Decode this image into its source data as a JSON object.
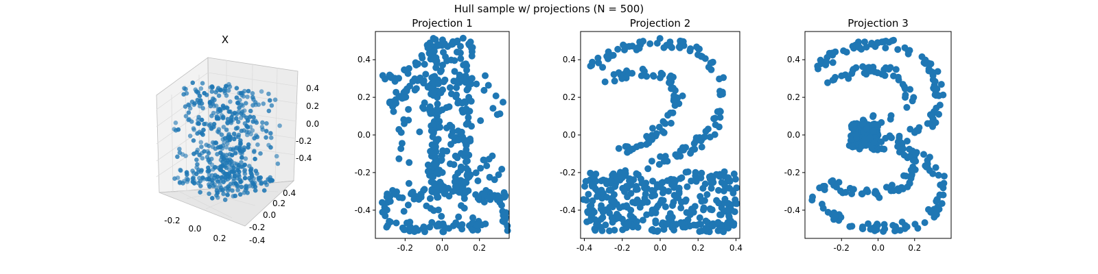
{
  "figure": {
    "suptitle": "Hull sample w/ projections (N = 500)"
  },
  "colors": {
    "point": "#1f77b4",
    "pane": "#f2f2f2",
    "grid": "#dcdcdc"
  },
  "chart_data": [
    {
      "type": "scatter3d",
      "title": "X",
      "n_points": 500,
      "x_ticks": [
        "-0.2",
        "0.0",
        "0.2"
      ],
      "y_ticks": [
        "0.4",
        "0.2",
        "0.0",
        "-0.2",
        "-0.4"
      ],
      "z_ticks": [
        "0.4",
        "0.2",
        "0.0",
        "-0.2",
        "-0.4"
      ],
      "xlim": [
        -0.35,
        0.35
      ],
      "ylim": [
        -0.5,
        0.5
      ],
      "zlim": [
        -0.5,
        0.5
      ],
      "grid": true
    },
    {
      "type": "scatter",
      "title": "Projection 1",
      "shape": "digit 1",
      "xlim": [
        -0.36,
        0.36
      ],
      "ylim": [
        -0.55,
        0.55
      ],
      "x_ticks": [
        "-0.2",
        "0.0",
        "0.2"
      ],
      "x_tick_values": [
        -0.2,
        0.0,
        0.2
      ],
      "y_ticks": [
        "0.4",
        "0.2",
        "0.0",
        "-0.2",
        "-0.4"
      ],
      "y_tick_values": [
        0.4,
        0.2,
        0.0,
        -0.2,
        -0.4
      ],
      "strokes": [
        [
          [
            -0.31,
            0.31
          ],
          [
            -0.15,
            0.34
          ],
          [
            -0.04,
            0.49
          ]
        ],
        [
          [
            -0.04,
            0.49
          ],
          [
            0.14,
            0.49
          ]
        ],
        [
          [
            -0.04,
            0.49
          ],
          [
            -0.06,
            -0.32
          ]
        ],
        [
          [
            0.14,
            0.49
          ],
          [
            0.12,
            -0.32
          ]
        ],
        [
          [
            -0.28,
            0.18
          ],
          [
            -0.06,
            0.32
          ]
        ],
        [
          [
            -0.3,
            -0.32
          ],
          [
            0.33,
            -0.32
          ]
        ],
        [
          [
            -0.3,
            -0.49
          ],
          [
            0.33,
            -0.49
          ]
        ],
        [
          [
            -0.3,
            -0.32
          ],
          [
            -0.3,
            -0.49
          ]
        ],
        [
          [
            0.33,
            -0.32
          ],
          [
            0.33,
            -0.49
          ]
        ]
      ],
      "fills": [
        [
          [
            -0.29,
            0.33
          ],
          [
            0.33,
            -0.49
          ]
        ],
        [
          [
            -0.05,
            0.48
          ],
          [
            0.13,
            -0.31
          ]
        ]
      ]
    },
    {
      "type": "scatter",
      "title": "Projection 2",
      "shape": "digit 2",
      "xlim": [
        -0.42,
        0.42
      ],
      "ylim": [
        -0.55,
        0.55
      ],
      "x_ticks": [
        "-0.4",
        "-0.2",
        "0.0",
        "0.2",
        "0.4"
      ],
      "x_tick_values": [
        -0.4,
        -0.2,
        0.0,
        0.2,
        0.4
      ],
      "y_ticks": [
        "0.4",
        "0.2",
        "0.0",
        "-0.2",
        "-0.4"
      ],
      "y_tick_values": [
        0.4,
        0.2,
        0.0,
        -0.2,
        -0.4
      ],
      "strokes": [
        [
          [
            -0.38,
            0.34
          ],
          [
            -0.26,
            0.44
          ],
          [
            -0.05,
            0.49
          ],
          [
            0.14,
            0.48
          ],
          [
            0.28,
            0.38
          ],
          [
            0.33,
            0.22
          ],
          [
            0.3,
            0.05
          ],
          [
            0.18,
            -0.06
          ],
          [
            0.02,
            -0.12
          ],
          [
            -0.15,
            -0.2
          ],
          [
            -0.26,
            -0.22
          ]
        ],
        [
          [
            -0.32,
            0.3
          ],
          [
            -0.12,
            0.33
          ],
          [
            0.05,
            0.3
          ],
          [
            0.1,
            0.18
          ],
          [
            0.02,
            0.05
          ],
          [
            -0.1,
            -0.05
          ],
          [
            -0.2,
            -0.08
          ]
        ],
        [
          [
            -0.38,
            -0.22
          ],
          [
            -0.38,
            -0.49
          ]
        ],
        [
          [
            -0.38,
            -0.22
          ],
          [
            -0.08,
            -0.22
          ]
        ],
        [
          [
            0.08,
            -0.22
          ],
          [
            0.38,
            -0.22
          ]
        ],
        [
          [
            -0.38,
            -0.49
          ],
          [
            0.38,
            -0.49
          ]
        ],
        [
          [
            0.38,
            -0.22
          ],
          [
            0.38,
            -0.49
          ]
        ]
      ],
      "fills": [
        [
          [
            -0.38,
            -0.23
          ],
          [
            0.38,
            -0.48
          ]
        ]
      ]
    },
    {
      "type": "scatter",
      "title": "Projection 3",
      "shape": "digit 3",
      "xlim": [
        -0.4,
        0.4
      ],
      "ylim": [
        -0.55,
        0.55
      ],
      "x_ticks": [
        "-0.2",
        "0.0",
        "0.2"
      ],
      "x_tick_values": [
        -0.2,
        0.0,
        0.2
      ],
      "y_ticks": [
        "0.4",
        "0.2",
        "0.0",
        "-0.2",
        "-0.4"
      ],
      "y_tick_values": [
        0.4,
        0.2,
        0.0,
        -0.2,
        -0.4
      ],
      "strokes": [
        [
          [
            -0.33,
            0.37
          ],
          [
            -0.2,
            0.45
          ],
          [
            -0.02,
            0.49
          ],
          [
            0.16,
            0.47
          ],
          [
            0.28,
            0.38
          ],
          [
            0.34,
            0.22
          ],
          [
            0.3,
            0.08
          ],
          [
            0.18,
            0.0
          ],
          [
            -0.02,
            -0.06
          ],
          [
            -0.16,
            -0.06
          ]
        ],
        [
          [
            -0.28,
            0.28
          ],
          [
            -0.1,
            0.34
          ],
          [
            0.08,
            0.34
          ],
          [
            0.16,
            0.26
          ],
          [
            0.18,
            0.12
          ]
        ],
        [
          [
            -0.14,
            0.08
          ],
          [
            0.08,
            0.08
          ]
        ],
        [
          [
            -0.14,
            -0.06
          ],
          [
            0.1,
            -0.06
          ],
          [
            0.26,
            -0.14
          ],
          [
            0.35,
            -0.24
          ],
          [
            0.34,
            -0.38
          ],
          [
            0.24,
            -0.47
          ],
          [
            0.05,
            -0.5
          ],
          [
            -0.14,
            -0.48
          ],
          [
            -0.28,
            -0.4
          ],
          [
            -0.36,
            -0.34
          ]
        ],
        [
          [
            -0.26,
            -0.22
          ],
          [
            -0.16,
            -0.3
          ],
          [
            0.0,
            -0.32
          ],
          [
            0.14,
            -0.26
          ],
          [
            0.2,
            -0.16
          ],
          [
            0.18,
            -0.08
          ]
        ],
        [
          [
            -0.32,
            -0.3
          ],
          [
            -0.26,
            -0.22
          ]
        ]
      ],
      "fills": [
        [
          [
            -0.15,
            0.06
          ],
          [
            0.0,
            -0.06
          ]
        ]
      ]
    }
  ]
}
